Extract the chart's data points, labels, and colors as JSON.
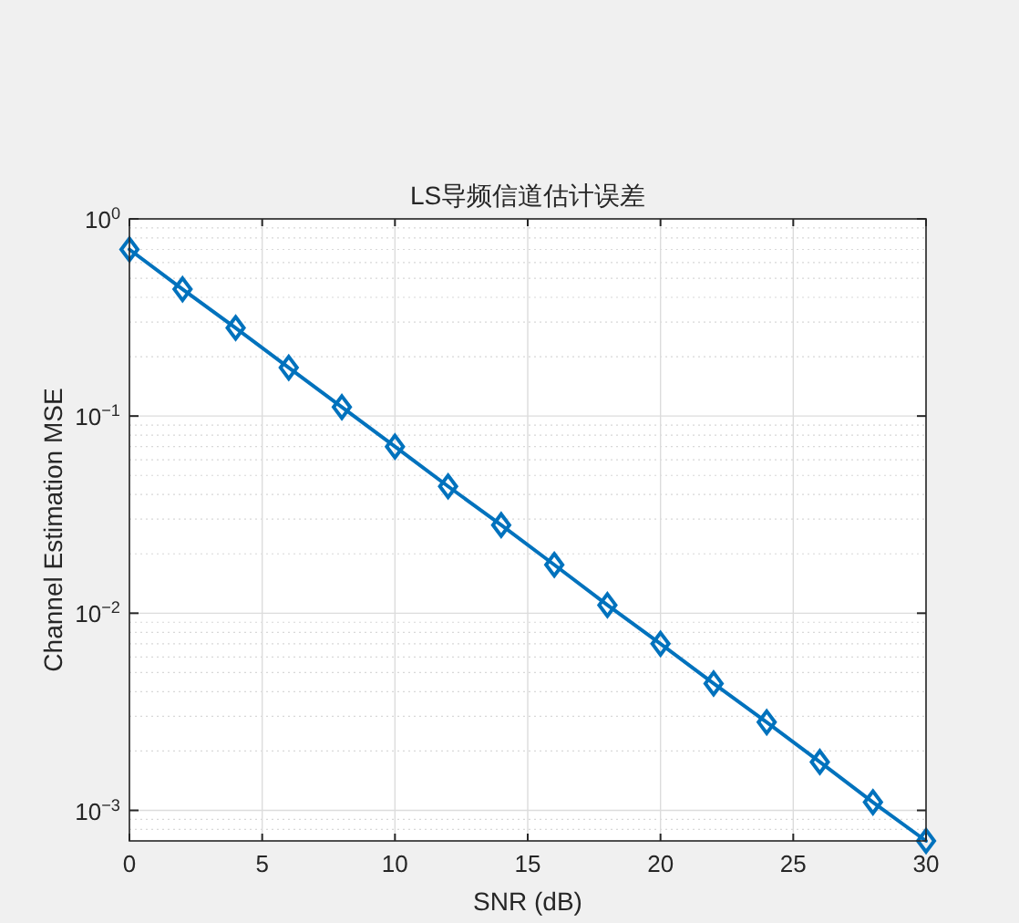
{
  "chart_data": {
    "type": "line",
    "title": "LS导频信道估计误差",
    "xlabel": "SNR (dB)",
    "ylabel": "Channel Estimation MSE",
    "x": [
      0,
      2,
      4,
      6,
      8,
      10,
      12,
      14,
      16,
      18,
      20,
      22,
      24,
      26,
      28,
      30
    ],
    "series": [
      {
        "color": "#0072bd",
        "values": [
          0.7,
          0.44,
          0.28,
          0.176,
          0.111,
          0.07,
          0.044,
          0.028,
          0.0176,
          0.011,
          0.007,
          0.0044,
          0.0028,
          0.00176,
          0.0011,
          0.0007
        ]
      }
    ],
    "xlim": [
      0,
      30
    ],
    "ylim": [
      0.0007,
      1
    ],
    "xticks": [
      0,
      5,
      10,
      15,
      20,
      25,
      30
    ],
    "yticks": [
      {
        "value": 0.001,
        "label": "10$^{−3}$"
      },
      {
        "value": 0.01,
        "label": "10$^{−2}$"
      },
      {
        "value": 0.1,
        "label": "10$^{−1}$"
      },
      {
        "value": 1,
        "label": "10$^{0}$"
      }
    ],
    "log": "y",
    "grid": true,
    "marker": "diamond",
    "line_style": "solid"
  }
}
